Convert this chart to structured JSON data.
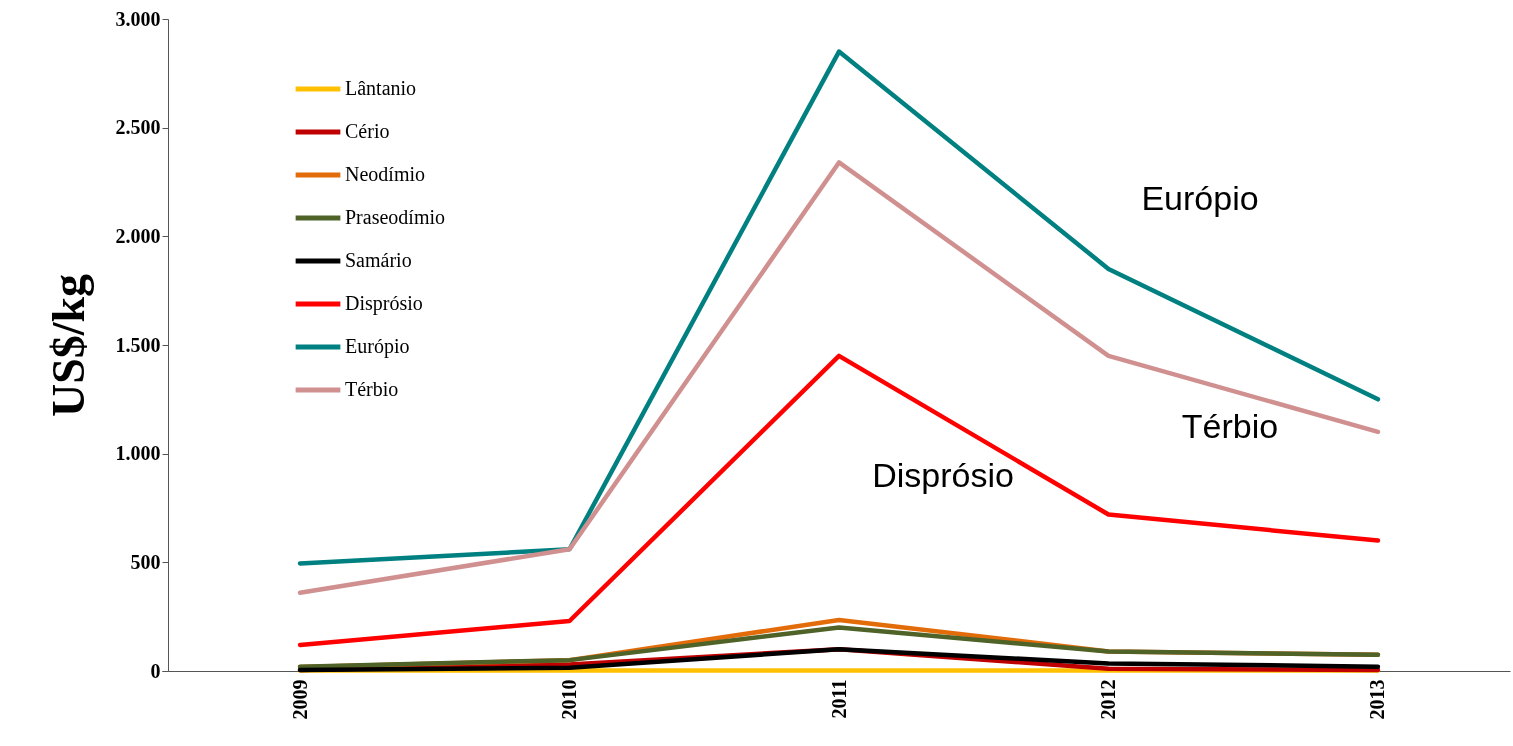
{
  "chart_data": {
    "type": "line",
    "ylabel": "US$/kg",
    "categories": [
      "2009",
      "2010",
      "2011",
      "2012",
      "2013"
    ],
    "series": [
      {
        "name": "Lântanio",
        "color": "#ffc000",
        "values": [
          2,
          2,
          2,
          2,
          2
        ]
      },
      {
        "name": "Cério",
        "color": "#c00000",
        "values": [
          5,
          30,
          100,
          10,
          5
        ]
      },
      {
        "name": "Neodímio",
        "color": "#e36c0a",
        "values": [
          18,
          50,
          235,
          90,
          75
        ]
      },
      {
        "name": "Praseodímio",
        "color": "#4f6228",
        "values": [
          20,
          50,
          200,
          90,
          75
        ]
      },
      {
        "name": "Samário",
        "color": "#000000",
        "values": [
          5,
          15,
          100,
          35,
          20
        ]
      },
      {
        "name": "Disprósio",
        "color": "#ff0000",
        "values": [
          120,
          230,
          1450,
          720,
          600
        ]
      },
      {
        "name": "Európio",
        "color": "#008080",
        "values": [
          495,
          560,
          2850,
          1850,
          1250
        ]
      },
      {
        "name": "Térbio",
        "color": "#d09090",
        "values": [
          360,
          560,
          2340,
          1450,
          1100
        ]
      }
    ],
    "annotations": [
      "Európio",
      "Térbio",
      "Disprósio"
    ],
    "ylim": [
      0,
      3000
    ],
    "yticks": [
      {
        "value": 0,
        "label": "0"
      },
      {
        "value": 500,
        "label": "500"
      },
      {
        "value": 1000,
        "label": "1.000"
      },
      {
        "value": 1500,
        "label": "1.500"
      },
      {
        "value": 2000,
        "label": "2.000"
      },
      {
        "value": 2500,
        "label": "2.500"
      },
      {
        "value": 3000,
        "label": "3.000"
      }
    ],
    "grid": false,
    "legend": "top left",
    "marker": "none",
    "line_style": "solid"
  }
}
